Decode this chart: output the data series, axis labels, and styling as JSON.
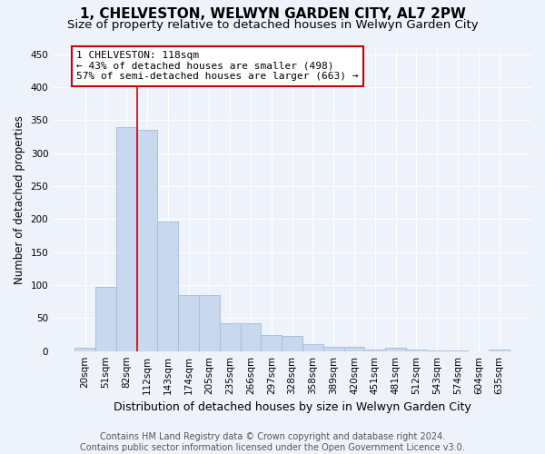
{
  "title": "1, CHELVESTON, WELWYN GARDEN CITY, AL7 2PW",
  "subtitle": "Size of property relative to detached houses in Welwyn Garden City",
  "xlabel": "Distribution of detached houses by size in Welwyn Garden City",
  "ylabel": "Number of detached properties",
  "footer_line1": "Contains HM Land Registry data © Crown copyright and database right 2024.",
  "footer_line2": "Contains public sector information licensed under the Open Government Licence v3.0.",
  "categories": [
    "20sqm",
    "51sqm",
    "82sqm",
    "112sqm",
    "143sqm",
    "174sqm",
    "205sqm",
    "235sqm",
    "266sqm",
    "297sqm",
    "328sqm",
    "358sqm",
    "389sqm",
    "420sqm",
    "451sqm",
    "481sqm",
    "512sqm",
    "543sqm",
    "574sqm",
    "604sqm",
    "635sqm"
  ],
  "values": [
    5,
    97,
    340,
    336,
    196,
    85,
    85,
    42,
    42,
    25,
    23,
    10,
    6,
    6,
    2,
    5,
    2,
    1,
    1,
    0,
    2
  ],
  "bar_color": "#c8d8ef",
  "bar_edge_color": "#a8b8d8",
  "vline_x": 2.5,
  "vline_color": "#cc0000",
  "annotation_text": "1 CHELVESTON: 118sqm\n← 43% of detached houses are smaller (498)\n57% of semi-detached houses are larger (663) →",
  "annotation_box_color": "white",
  "annotation_box_edge_color": "#cc0000",
  "ylim": [
    0,
    460
  ],
  "yticks": [
    0,
    50,
    100,
    150,
    200,
    250,
    300,
    350,
    400,
    450
  ],
  "bg_color": "#eef2fa",
  "plot_bg_color": "#eef2fa",
  "grid_color": "#ffffff",
  "title_fontsize": 11,
  "subtitle_fontsize": 9.5,
  "xlabel_fontsize": 9,
  "ylabel_fontsize": 8.5,
  "tick_fontsize": 7.5,
  "footer_fontsize": 7,
  "annotation_fontsize": 8
}
